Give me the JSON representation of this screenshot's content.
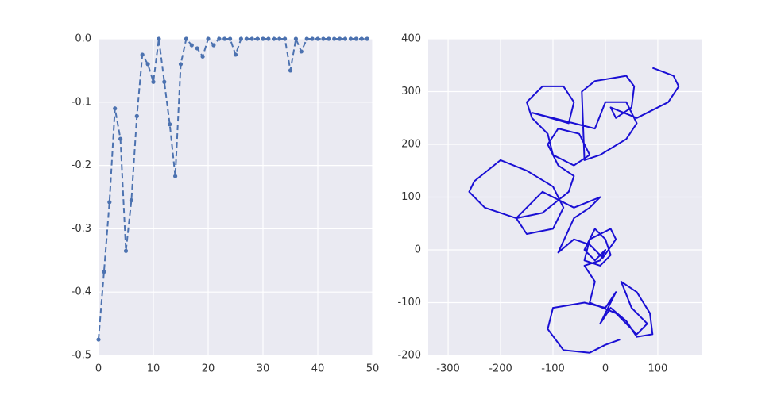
{
  "chart_data": [
    {
      "type": "line",
      "color": "#4c72b0",
      "linestyle": "dashed",
      "marker": true,
      "x": [
        0,
        1,
        2,
        3,
        4,
        5,
        6,
        7,
        8,
        9,
        10,
        11,
        12,
        13,
        14,
        15,
        16,
        17,
        18,
        19,
        20,
        21,
        22,
        23,
        24,
        25,
        26,
        27,
        28,
        29,
        30,
        31,
        32,
        33,
        34,
        35,
        36,
        37,
        38,
        39,
        40,
        41,
        42,
        43,
        44,
        45,
        46,
        47,
        48,
        49
      ],
      "values": [
        -0.475,
        -0.368,
        -0.258,
        -0.11,
        -0.158,
        -0.335,
        -0.255,
        -0.122,
        -0.025,
        -0.04,
        -0.068,
        0,
        -0.068,
        -0.135,
        -0.217,
        -0.04,
        0,
        -0.01,
        -0.015,
        -0.028,
        0,
        -0.01,
        0,
        0,
        0,
        -0.025,
        0,
        0,
        0,
        0,
        0,
        0,
        0,
        0,
        0,
        -0.05,
        0,
        -0.02,
        0,
        0,
        0,
        0,
        0,
        0,
        0,
        0,
        0,
        0,
        0,
        0
      ],
      "xlim": [
        0,
        50
      ],
      "ylim": [
        -0.5,
        0
      ],
      "xticks": [
        0,
        10,
        20,
        30,
        40,
        50
      ],
      "yticks": [
        -0.5,
        -0.4,
        -0.3,
        -0.2,
        -0.1,
        {
          "value": 0,
          "label": "0.0"
        }
      ],
      "grid": true
    },
    {
      "type": "line",
      "color": "#1a0fd4",
      "linestyle": "solid",
      "marker": false,
      "x": [
        28,
        0,
        -30,
        -80,
        -110,
        -100,
        -40,
        0,
        20,
        -10,
        10,
        40,
        60,
        90,
        85,
        60,
        30,
        50,
        80,
        60,
        20,
        -30,
        -20,
        -40,
        -10,
        0,
        -20,
        -40,
        -20,
        0,
        10,
        -10,
        -40,
        -30,
        10,
        20,
        -5,
        -30,
        -60,
        -90,
        -60,
        -30,
        -10,
        -60,
        -120,
        -170,
        -150,
        -100,
        -80,
        -100,
        -150,
        -200,
        -250,
        -260,
        -230,
        -170,
        -120,
        -70,
        -60,
        -90,
        -110,
        -90,
        -50,
        -30,
        -60,
        -100,
        -110,
        -140,
        -150,
        -120,
        -80,
        -60,
        -70,
        -140,
        -20,
        0,
        40,
        60,
        40,
        -10,
        -40,
        -45,
        -20,
        40,
        55,
        50,
        20,
        10,
        60,
        120,
        140,
        130,
        90
      ],
      "values": [
        -170,
        -180,
        -195,
        -190,
        -150,
        -110,
        -100,
        -110,
        -80,
        -140,
        -110,
        -135,
        -165,
        -160,
        -120,
        -80,
        -60,
        -110,
        -140,
        -160,
        -120,
        -100,
        -60,
        -30,
        -20,
        0,
        -20,
        0,
        40,
        20,
        -10,
        -30,
        -20,
        20,
        40,
        20,
        -15,
        10,
        20,
        -5,
        60,
        80,
        100,
        80,
        110,
        60,
        30,
        40,
        80,
        120,
        150,
        170,
        130,
        110,
        80,
        60,
        70,
        110,
        140,
        160,
        200,
        230,
        220,
        180,
        160,
        180,
        220,
        250,
        280,
        310,
        310,
        280,
        240,
        260,
        230,
        280,
        280,
        240,
        210,
        180,
        170,
        300,
        320,
        330,
        310,
        270,
        250,
        270,
        250,
        280,
        310,
        330,
        345
      ],
      "xlim": [
        -338,
        185
      ],
      "ylim": [
        -200,
        400
      ],
      "xticks": [
        -300,
        -200,
        -100,
        0,
        100
      ],
      "yticks": [
        -200,
        -100,
        0,
        100,
        200,
        300,
        400
      ],
      "grid": true
    }
  ]
}
